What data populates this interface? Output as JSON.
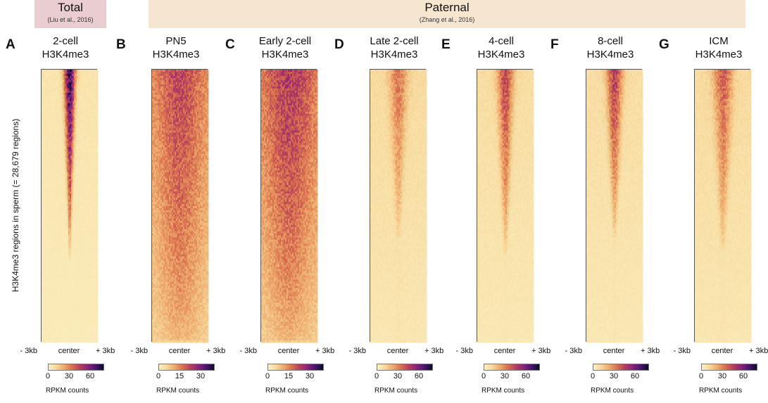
{
  "header": {
    "total": {
      "title": "Total",
      "cite": "(Liu et al., 2016)"
    },
    "paternal": {
      "title": "Paternal",
      "cite": "(Zhang et al., 2016)"
    }
  },
  "y_axis_label": "H3K4me3 regions in sperm (= 28,679 regions)",
  "chart_data": [
    {
      "type": "heatmap",
      "letter": "A",
      "condition": "2-cell",
      "mark": "H3K4me3",
      "group": "Total",
      "x_ticks": [
        "- 3kb",
        "center",
        "+ 3kb"
      ],
      "colorbar_ticks": [
        "0",
        "30",
        "60"
      ],
      "colorbar_max": 80,
      "colorbar_label": "RPKM counts",
      "rows": 28679,
      "profile": {
        "peak_top": 72,
        "peak_bottom": 3,
        "background": 6,
        "width_top": 0.14,
        "width_bottom": 0.015,
        "cutoff": 0.72
      }
    },
    {
      "type": "heatmap",
      "letter": "B",
      "condition": "PN5",
      "mark": "H3K4me3",
      "group": "Paternal",
      "x_ticks": [
        "- 3kb",
        "center",
        "+ 3kb"
      ],
      "colorbar_ticks": [
        "0",
        "15",
        "30"
      ],
      "colorbar_max": 40,
      "colorbar_label": "RPKM counts",
      "rows": 28679,
      "profile": {
        "peak_top": 22,
        "peak_bottom": 9,
        "background": 12,
        "width_top": 0.55,
        "width_bottom": 0.5,
        "cutoff": 1.0
      }
    },
    {
      "type": "heatmap",
      "letter": "C",
      "condition": "Early 2-cell",
      "mark": "H3K4me3",
      "group": "Paternal",
      "x_ticks": [
        "- 3kb",
        "center",
        "+ 3kb"
      ],
      "colorbar_ticks": [
        "0",
        "15",
        "30"
      ],
      "colorbar_max": 40,
      "colorbar_label": "RPKM counts",
      "rows": 28679,
      "profile": {
        "peak_top": 24,
        "peak_bottom": 9,
        "background": 13,
        "width_top": 0.6,
        "width_bottom": 0.5,
        "cutoff": 1.0
      }
    },
    {
      "type": "heatmap",
      "letter": "D",
      "condition": "Late 2-cell",
      "mark": "H3K4me3",
      "group": "Paternal",
      "x_ticks": [
        "- 3kb",
        "center",
        "+ 3kb"
      ],
      "colorbar_ticks": [
        "0",
        "30",
        "60"
      ],
      "colorbar_max": 80,
      "colorbar_label": "RPKM counts",
      "rows": 28679,
      "profile": {
        "peak_top": 34,
        "peak_bottom": 10,
        "background": 10,
        "width_top": 0.22,
        "width_bottom": 0.06,
        "cutoff": 0.62
      }
    },
    {
      "type": "heatmap",
      "letter": "E",
      "condition": "4-cell",
      "mark": "H3K4me3",
      "group": "Paternal",
      "x_ticks": [
        "- 3kb",
        "center",
        "+ 3kb"
      ],
      "colorbar_ticks": [
        "0",
        "30",
        "60"
      ],
      "colorbar_max": 80,
      "colorbar_label": "RPKM counts",
      "rows": 28679,
      "profile": {
        "peak_top": 44,
        "peak_bottom": 10,
        "background": 9,
        "width_top": 0.2,
        "width_bottom": 0.04,
        "cutoff": 0.68
      }
    },
    {
      "type": "heatmap",
      "letter": "F",
      "condition": "8-cell",
      "mark": "H3K4me3",
      "group": "Paternal",
      "x_ticks": [
        "- 3kb",
        "center",
        "+ 3kb"
      ],
      "colorbar_ticks": [
        "0",
        "30",
        "60"
      ],
      "colorbar_max": 80,
      "colorbar_label": "RPKM counts",
      "rows": 28679,
      "profile": {
        "peak_top": 46,
        "peak_bottom": 10,
        "background": 9,
        "width_top": 0.2,
        "width_bottom": 0.04,
        "cutoff": 0.62
      }
    },
    {
      "type": "heatmap",
      "letter": "G",
      "condition": "ICM",
      "mark": "H3K4me3",
      "group": "Paternal",
      "x_ticks": [
        "- 3kb",
        "center",
        "+ 3kb"
      ],
      "colorbar_ticks": [
        "0",
        "30",
        "60"
      ],
      "colorbar_max": 80,
      "colorbar_label": "RPKM counts",
      "rows": 28679,
      "profile": {
        "peak_top": 38,
        "peak_bottom": 10,
        "background": 10,
        "width_top": 0.24,
        "width_bottom": 0.06,
        "cutoff": 0.66
      }
    }
  ],
  "colormap": [
    "#fbf2c4",
    "#f7d79a",
    "#eda96b",
    "#d9704e",
    "#b73f5c",
    "#8a2479",
    "#4a1470",
    "#0c0a29"
  ]
}
